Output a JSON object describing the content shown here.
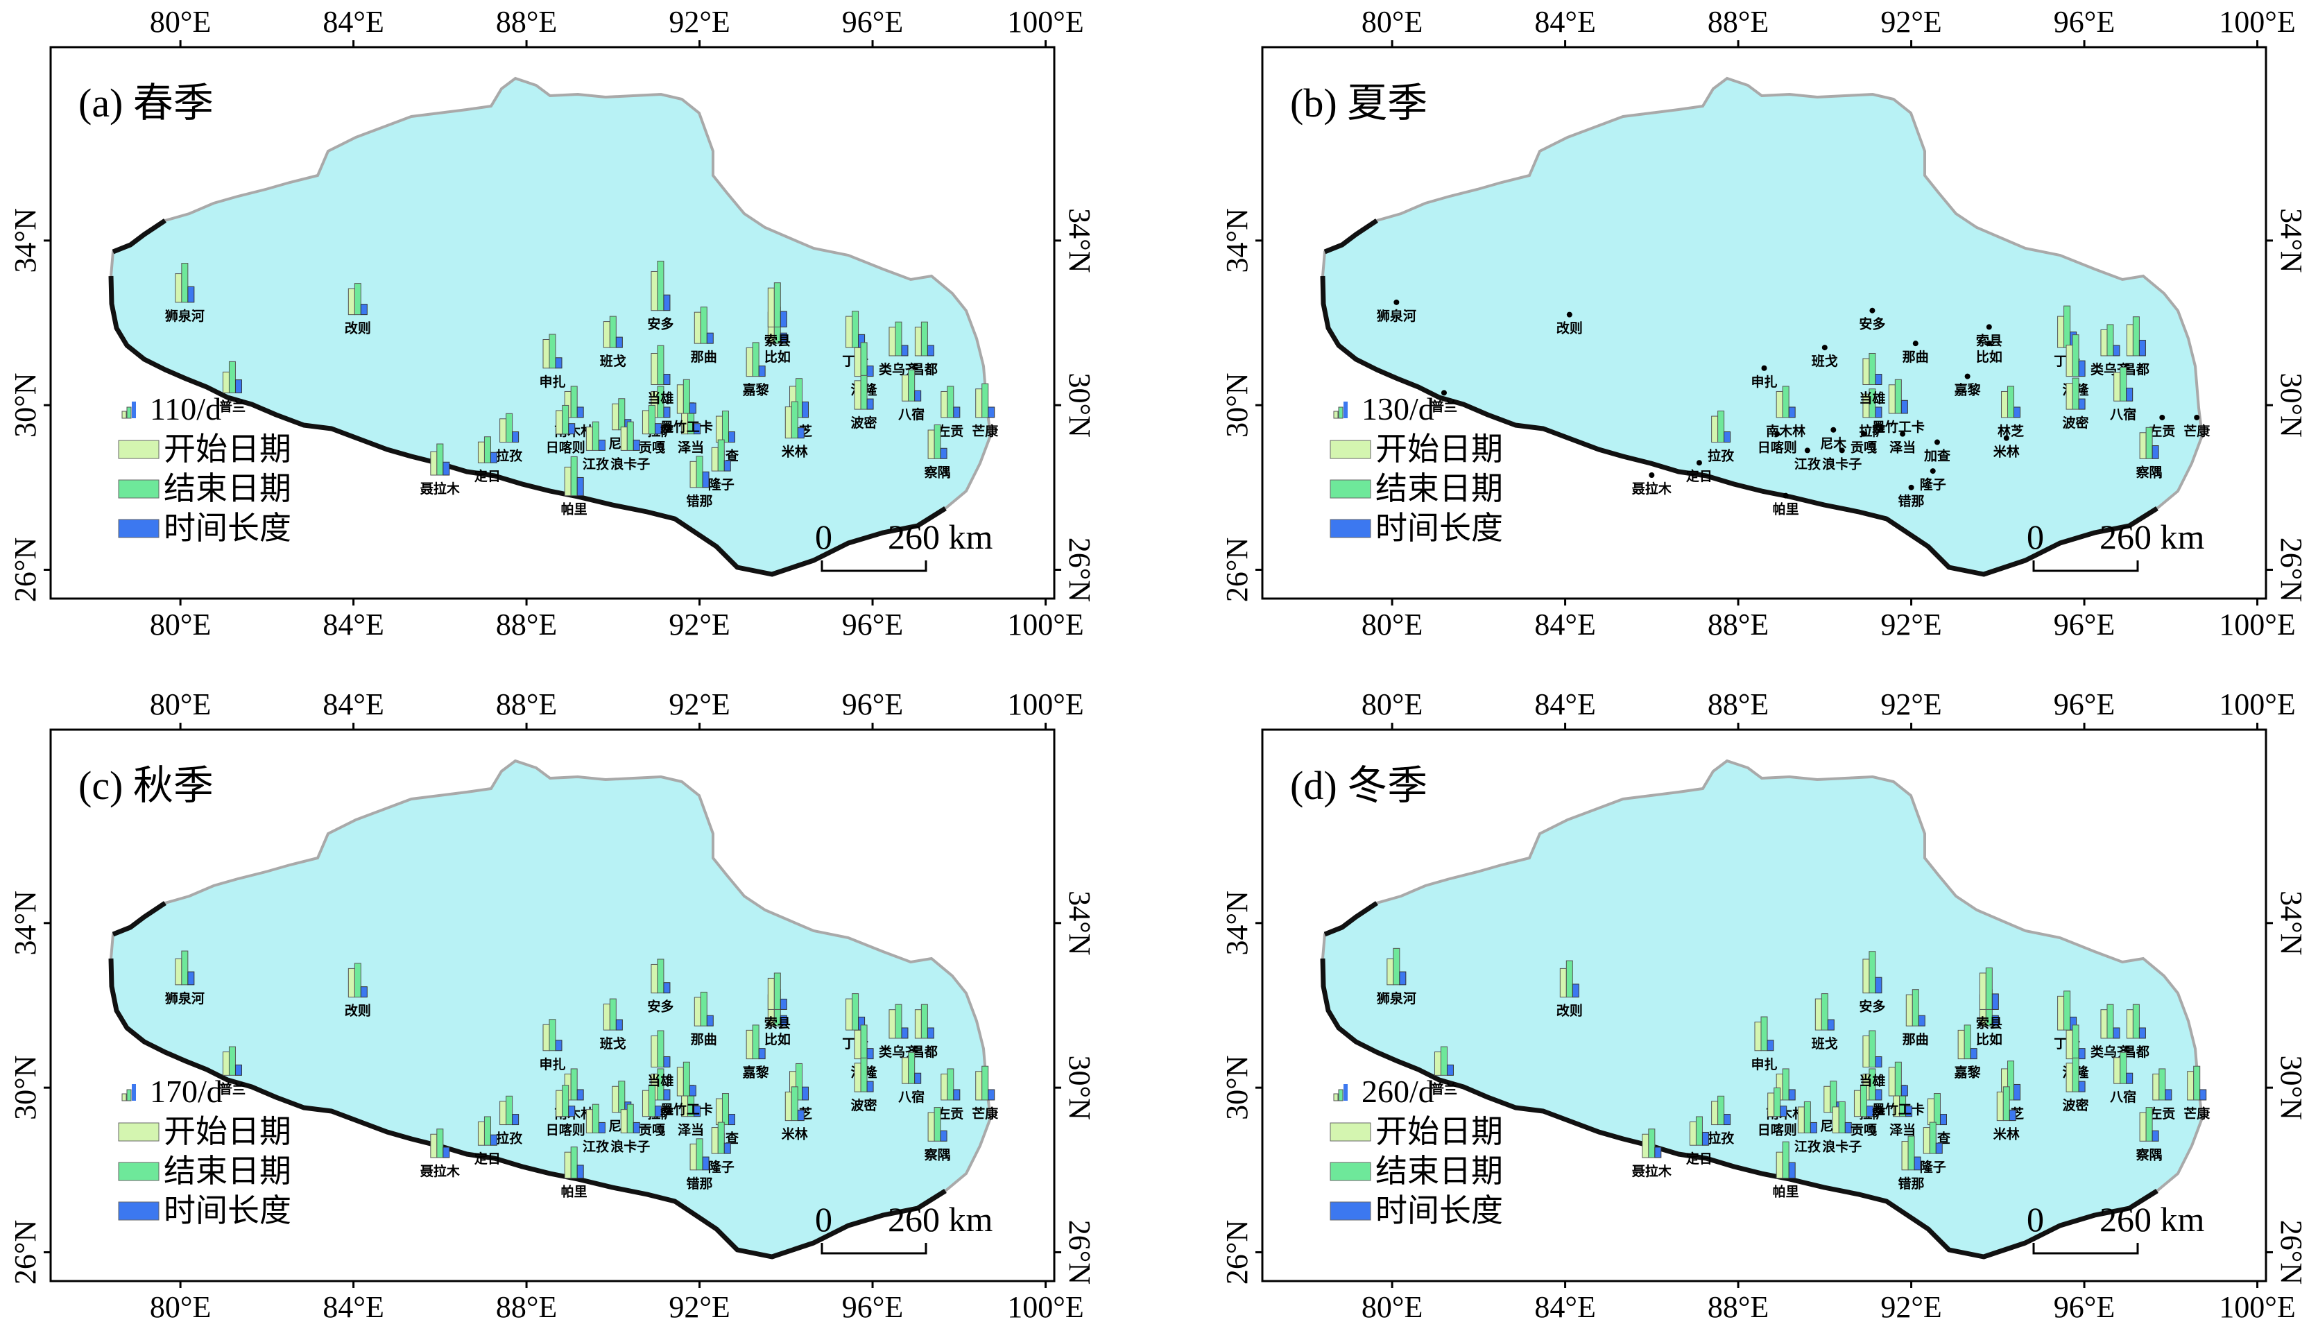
{
  "figure": {
    "lon_ticks": [
      "80°E",
      "84°E",
      "88°E",
      "92°E",
      "96°E",
      "100°E"
    ],
    "lat_ticks": [
      "26°N",
      "30°N",
      "34°N"
    ],
    "scale_bar": {
      "start": "0",
      "end": "260 km"
    },
    "legend": {
      "start_date": "开始日期",
      "end_date": "结束日期",
      "duration": "时间长度"
    },
    "colors": {
      "region": "#b8f2f5",
      "coast": "#111111",
      "outline": "#a9a9a9",
      "start_bar": "#d4f5b0",
      "end_bar": "#6ee89a",
      "duration_bar": "#3c78f0",
      "dot": "#000000"
    }
  },
  "stations": [
    {
      "name": "狮泉河",
      "lon": 80.1,
      "lat": 32.5
    },
    {
      "name": "普兰",
      "lon": 81.2,
      "lat": 30.3
    },
    {
      "name": "改则",
      "lon": 84.1,
      "lat": 32.2
    },
    {
      "name": "聂拉木",
      "lon": 86.0,
      "lat": 28.3
    },
    {
      "name": "拉孜",
      "lon": 87.6,
      "lat": 29.1
    },
    {
      "name": "定日",
      "lon": 87.1,
      "lat": 28.6
    },
    {
      "name": "申扎",
      "lon": 88.6,
      "lat": 30.9
    },
    {
      "name": "南木林",
      "lon": 89.1,
      "lat": 29.7
    },
    {
      "name": "日喀则",
      "lon": 88.9,
      "lat": 29.3
    },
    {
      "name": "江孜",
      "lon": 89.6,
      "lat": 28.9
    },
    {
      "name": "帕里",
      "lon": 89.1,
      "lat": 27.8
    },
    {
      "name": "班戈",
      "lon": 90.0,
      "lat": 31.4
    },
    {
      "name": "尼木",
      "lon": 90.2,
      "lat": 29.4
    },
    {
      "name": "浪卡子",
      "lon": 90.4,
      "lat": 28.9
    },
    {
      "name": "拉萨",
      "lon": 91.1,
      "lat": 29.7
    },
    {
      "name": "贡嘎",
      "lon": 90.9,
      "lat": 29.3
    },
    {
      "name": "安多",
      "lon": 91.1,
      "lat": 32.3
    },
    {
      "name": "那曲",
      "lon": 92.1,
      "lat": 31.5
    },
    {
      "name": "当雄",
      "lon": 91.1,
      "lat": 30.5
    },
    {
      "name": "泽当",
      "lon": 91.8,
      "lat": 29.3
    },
    {
      "name": "墨竹工卡",
      "lon": 91.7,
      "lat": 29.8
    },
    {
      "name": "加查",
      "lon": 92.6,
      "lat": 29.1
    },
    {
      "name": "隆子",
      "lon": 92.5,
      "lat": 28.4
    },
    {
      "name": "错那",
      "lon": 92.0,
      "lat": 28.0
    },
    {
      "name": "嘉黎",
      "lon": 93.3,
      "lat": 30.7
    },
    {
      "name": "比如",
      "lon": 93.8,
      "lat": 31.5
    },
    {
      "name": "索县",
      "lon": 93.8,
      "lat": 31.9
    },
    {
      "name": "丁青",
      "lon": 95.6,
      "lat": 31.4
    },
    {
      "name": "洛隆",
      "lon": 95.8,
      "lat": 30.7
    },
    {
      "name": "林芝",
      "lon": 94.3,
      "lat": 29.7
    },
    {
      "name": "米林",
      "lon": 94.2,
      "lat": 29.2
    },
    {
      "name": "波密",
      "lon": 95.8,
      "lat": 29.9
    },
    {
      "name": "类乌齐",
      "lon": 96.6,
      "lat": 31.2
    },
    {
      "name": "昌都",
      "lon": 97.2,
      "lat": 31.2
    },
    {
      "name": "八宿",
      "lon": 96.9,
      "lat": 30.1
    },
    {
      "name": "左贡",
      "lon": 97.8,
      "lat": 29.7
    },
    {
      "name": "察隅",
      "lon": 97.5,
      "lat": 28.7
    },
    {
      "name": "芒康",
      "lon": 98.6,
      "lat": 29.7
    }
  ],
  "panels": [
    {
      "title": "(a) 春季",
      "legend_value": "110/d",
      "bars": [
        [
          0.55,
          0.75,
          0.3
        ],
        [
          0.4,
          0.6,
          0.25
        ],
        [
          0.5,
          0.6,
          0.2
        ],
        [
          0.45,
          0.6,
          0.25
        ],
        [
          0.45,
          0.55,
          0.2
        ],
        [
          0.4,
          0.5,
          0.2
        ],
        [
          0.55,
          0.65,
          0.2
        ],
        [
          0.5,
          0.6,
          0.2
        ],
        [
          0.45,
          0.55,
          0.2
        ],
        [
          0.45,
          0.55,
          0.2
        ],
        [
          0.55,
          0.75,
          0.35
        ],
        [
          0.5,
          0.6,
          0.2
        ],
        [
          0.5,
          0.6,
          0.2
        ],
        [
          0.45,
          0.55,
          0.2
        ],
        [
          0.5,
          0.6,
          0.2
        ],
        [
          0.45,
          0.55,
          0.2
        ],
        [
          0.75,
          0.95,
          0.3
        ],
        [
          0.6,
          0.7,
          0.2
        ],
        [
          0.6,
          0.75,
          0.2
        ],
        [
          0.5,
          0.6,
          0.2
        ],
        [
          0.55,
          0.65,
          0.2
        ],
        [
          0.5,
          0.6,
          0.2
        ],
        [
          0.45,
          0.6,
          0.2
        ],
        [
          0.5,
          0.6,
          0.3
        ],
        [
          0.55,
          0.65,
          0.2
        ],
        [
          0.6,
          0.7,
          0.2
        ],
        [
          0.75,
          0.85,
          0.3
        ],
        [
          0.6,
          0.7,
          0.25
        ],
        [
          0.55,
          0.65,
          0.2
        ],
        [
          0.6,
          0.75,
          0.3
        ],
        [
          0.6,
          0.7,
          0.2
        ],
        [
          0.55,
          0.65,
          0.2
        ],
        [
          0.55,
          0.65,
          0.2
        ],
        [
          0.55,
          0.65,
          0.2
        ],
        [
          0.5,
          0.6,
          0.2
        ],
        [
          0.5,
          0.6,
          0.2
        ],
        [
          0.55,
          0.65,
          0.2
        ],
        [
          0.55,
          0.65,
          0.2
        ]
      ]
    },
    {
      "title": "(b) 夏季",
      "legend_value": "130/d",
      "bars": [
        [
          0,
          0,
          0
        ],
        [
          0,
          0,
          0
        ],
        [
          0,
          0,
          0
        ],
        [
          0,
          0,
          0
        ],
        [
          0.5,
          0.6,
          0.2
        ],
        [
          0,
          0,
          0
        ],
        [
          0,
          0,
          0
        ],
        [
          0.5,
          0.6,
          0.2
        ],
        [
          0,
          0,
          0
        ],
        [
          0,
          0,
          0
        ],
        [
          0,
          0,
          0
        ],
        [
          0,
          0,
          0
        ],
        [
          0,
          0,
          0
        ],
        [
          0,
          0,
          0
        ],
        [
          0.45,
          0.55,
          0.2
        ],
        [
          0,
          0,
          0
        ],
        [
          0,
          0,
          0
        ],
        [
          0,
          0,
          0
        ],
        [
          0.5,
          0.6,
          0.2
        ],
        [
          0,
          0,
          0
        ],
        [
          0.55,
          0.65,
          0.25
        ],
        [
          0,
          0,
          0
        ],
        [
          0,
          0,
          0
        ],
        [
          0,
          0,
          0
        ],
        [
          0,
          0,
          0
        ],
        [
          0,
          0,
          0
        ],
        [
          0,
          0,
          0
        ],
        [
          0.6,
          0.8,
          0.3
        ],
        [
          0.6,
          0.8,
          0.3
        ],
        [
          0.5,
          0.6,
          0.2
        ],
        [
          0,
          0,
          0
        ],
        [
          0.5,
          0.6,
          0.2
        ],
        [
          0.5,
          0.6,
          0.2
        ],
        [
          0.6,
          0.75,
          0.3
        ],
        [
          0.55,
          0.65,
          0.25
        ],
        [
          0,
          0,
          0
        ],
        [
          0.5,
          0.6,
          0.25
        ],
        [
          0,
          0,
          0
        ]
      ]
    },
    {
      "title": "(c) 秋季",
      "legend_value": "170/d",
      "bars": [
        [
          0.5,
          0.65,
          0.25
        ],
        [
          0.45,
          0.55,
          0.2
        ],
        [
          0.55,
          0.65,
          0.2
        ],
        [
          0.45,
          0.55,
          0.2
        ],
        [
          0.45,
          0.55,
          0.2
        ],
        [
          0.45,
          0.55,
          0.2
        ],
        [
          0.5,
          0.6,
          0.2
        ],
        [
          0.5,
          0.6,
          0.2
        ],
        [
          0.5,
          0.6,
          0.2
        ],
        [
          0.45,
          0.55,
          0.2
        ],
        [
          0.5,
          0.6,
          0.25
        ],
        [
          0.5,
          0.6,
          0.2
        ],
        [
          0.5,
          0.6,
          0.2
        ],
        [
          0.45,
          0.55,
          0.2
        ],
        [
          0.5,
          0.6,
          0.2
        ],
        [
          0.5,
          0.6,
          0.2
        ],
        [
          0.55,
          0.65,
          0.2
        ],
        [
          0.55,
          0.65,
          0.2
        ],
        [
          0.6,
          0.7,
          0.2
        ],
        [
          0.5,
          0.6,
          0.2
        ],
        [
          0.55,
          0.65,
          0.2
        ],
        [
          0.5,
          0.6,
          0.2
        ],
        [
          0.5,
          0.6,
          0.2
        ],
        [
          0.5,
          0.6,
          0.25
        ],
        [
          0.55,
          0.65,
          0.2
        ],
        [
          0.6,
          0.7,
          0.2
        ],
        [
          0.6,
          0.7,
          0.2
        ],
        [
          0.6,
          0.7,
          0.25
        ],
        [
          0.55,
          0.65,
          0.2
        ],
        [
          0.55,
          0.7,
          0.25
        ],
        [
          0.55,
          0.65,
          0.2
        ],
        [
          0.55,
          0.65,
          0.2
        ],
        [
          0.55,
          0.65,
          0.2
        ],
        [
          0.55,
          0.65,
          0.2
        ],
        [
          0.5,
          0.6,
          0.2
        ],
        [
          0.5,
          0.6,
          0.2
        ],
        [
          0.55,
          0.65,
          0.2
        ],
        [
          0.55,
          0.65,
          0.2
        ]
      ]
    },
    {
      "title": "(d) 冬季",
      "legend_value": "260/d",
      "bars": [
        [
          0.5,
          0.7,
          0.25
        ],
        [
          0.45,
          0.55,
          0.2
        ],
        [
          0.55,
          0.7,
          0.25
        ],
        [
          0.45,
          0.55,
          0.2
        ],
        [
          0.45,
          0.55,
          0.2
        ],
        [
          0.45,
          0.55,
          0.25
        ],
        [
          0.55,
          0.65,
          0.2
        ],
        [
          0.5,
          0.6,
          0.2
        ],
        [
          0.45,
          0.55,
          0.2
        ],
        [
          0.5,
          0.6,
          0.2
        ],
        [
          0.5,
          0.7,
          0.3
        ],
        [
          0.6,
          0.7,
          0.2
        ],
        [
          0.5,
          0.6,
          0.2
        ],
        [
          0.5,
          0.6,
          0.2
        ],
        [
          0.5,
          0.6,
          0.2
        ],
        [
          0.5,
          0.6,
          0.2
        ],
        [
          0.65,
          0.8,
          0.3
        ],
        [
          0.6,
          0.7,
          0.2
        ],
        [
          0.6,
          0.7,
          0.2
        ],
        [
          0.5,
          0.6,
          0.2
        ],
        [
          0.55,
          0.65,
          0.2
        ],
        [
          0.5,
          0.6,
          0.2
        ],
        [
          0.5,
          0.6,
          0.2
        ],
        [
          0.55,
          0.65,
          0.25
        ],
        [
          0.55,
          0.65,
          0.2
        ],
        [
          0.6,
          0.7,
          0.2
        ],
        [
          0.7,
          0.8,
          0.3
        ],
        [
          0.65,
          0.75,
          0.25
        ],
        [
          0.55,
          0.65,
          0.2
        ],
        [
          0.6,
          0.75,
          0.3
        ],
        [
          0.55,
          0.65,
          0.2
        ],
        [
          0.55,
          0.65,
          0.2
        ],
        [
          0.55,
          0.65,
          0.2
        ],
        [
          0.55,
          0.65,
          0.2
        ],
        [
          0.5,
          0.6,
          0.2
        ],
        [
          0.5,
          0.6,
          0.2
        ],
        [
          0.55,
          0.65,
          0.2
        ],
        [
          0.55,
          0.65,
          0.2
        ]
      ]
    }
  ]
}
